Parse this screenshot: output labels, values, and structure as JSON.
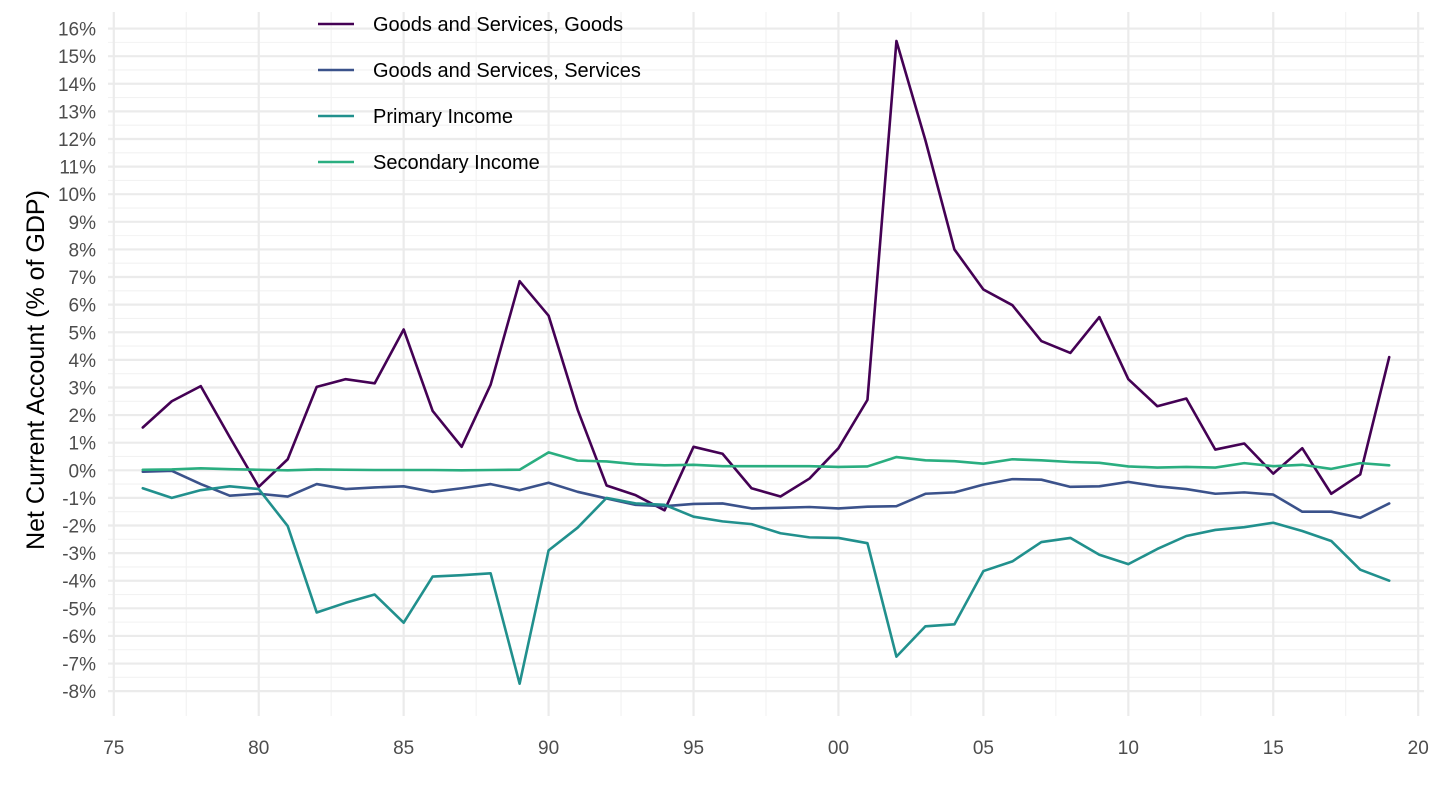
{
  "chart_data": {
    "type": "line",
    "title": "",
    "xlabel": "",
    "ylabel": "Net Current Account (% of GDP)",
    "xlim": [
      1974.8,
      2020.2
    ],
    "ylim": [
      -8.9,
      16.6
    ],
    "x_ticks": [
      1975,
      1980,
      1985,
      1990,
      1995,
      2000,
      2005,
      2010,
      2015,
      2020
    ],
    "x_tick_labels": [
      "75",
      "80",
      "85",
      "90",
      "95",
      "00",
      "05",
      "10",
      "15",
      "20"
    ],
    "y_ticks": [
      -8,
      -7,
      -6,
      -5,
      -4,
      -3,
      -2,
      -1,
      0,
      1,
      2,
      3,
      4,
      5,
      6,
      7,
      8,
      9,
      10,
      11,
      12,
      13,
      14,
      15,
      16
    ],
    "y_tick_labels": [
      "-8%",
      "-7%",
      "-6%",
      "-5%",
      "-4%",
      "-3%",
      "-2%",
      "-1%",
      "0%",
      "1%",
      "2%",
      "3%",
      "4%",
      "5%",
      "6%",
      "7%",
      "8%",
      "9%",
      "10%",
      "11%",
      "12%",
      "13%",
      "14%",
      "15%",
      "16%"
    ],
    "grid": true,
    "legend_position": "top-left",
    "x": [
      1976,
      1977,
      1978,
      1979,
      1980,
      1981,
      1982,
      1983,
      1984,
      1985,
      1986,
      1987,
      1988,
      1989,
      1990,
      1991,
      1992,
      1993,
      1994,
      1995,
      1996,
      1997,
      1998,
      1999,
      2000,
      2001,
      2002,
      2003,
      2004,
      2005,
      2006,
      2007,
      2008,
      2009,
      2010,
      2011,
      2012,
      2013,
      2014,
      2015,
      2016,
      2017,
      2018,
      2019
    ],
    "series": [
      {
        "name": "Goods and Services, Goods",
        "color": "#440154",
        "values": [
          1.55,
          2.5,
          3.05,
          1.2,
          -0.6,
          0.4,
          3.02,
          3.3,
          3.15,
          5.1,
          2.15,
          0.85,
          3.1,
          6.85,
          5.6,
          2.2,
          -0.55,
          -0.9,
          -1.45,
          0.85,
          0.6,
          -0.65,
          -0.95,
          -0.3,
          0.8,
          2.55,
          15.55,
          11.95,
          8.0,
          6.55,
          5.98,
          4.68,
          4.25,
          5.55,
          3.3,
          2.32,
          2.6,
          0.75,
          0.97,
          -0.12,
          0.8,
          -0.85,
          -0.15,
          4.1
        ]
      },
      {
        "name": "Goods and Services, Services",
        "color": "#3b528b",
        "values": [
          -0.05,
          -0.02,
          -0.5,
          -0.92,
          -0.85,
          -0.95,
          -0.5,
          -0.68,
          -0.62,
          -0.58,
          -0.78,
          -0.65,
          -0.5,
          -0.72,
          -0.45,
          -0.78,
          -1.02,
          -1.25,
          -1.3,
          -1.22,
          -1.2,
          -1.38,
          -1.36,
          -1.33,
          -1.38,
          -1.32,
          -1.3,
          -0.85,
          -0.8,
          -0.52,
          -0.32,
          -0.34,
          -0.6,
          -0.58,
          -0.42,
          -0.58,
          -0.68,
          -0.85,
          -0.8,
          -0.88,
          -1.5,
          -1.5,
          -1.72,
          -1.2
        ]
      },
      {
        "name": "Primary Income",
        "color": "#21908d",
        "values": [
          -0.65,
          -1.0,
          -0.72,
          -0.58,
          -0.68,
          -2.02,
          -5.15,
          -4.8,
          -4.5,
          -5.52,
          -3.85,
          -3.8,
          -3.73,
          -7.73,
          -2.9,
          -2.08,
          -1.0,
          -1.2,
          -1.25,
          -1.68,
          -1.85,
          -1.95,
          -2.28,
          -2.43,
          -2.45,
          -2.64,
          -6.75,
          -5.65,
          -5.58,
          -3.65,
          -3.3,
          -2.6,
          -2.45,
          -3.06,
          -3.4,
          -2.85,
          -2.38,
          -2.16,
          -2.06,
          -1.9,
          -2.2,
          -2.56,
          -3.6,
          -4.0
        ]
      },
      {
        "name": "Secondary Income",
        "color": "#2aae80",
        "values": [
          0.02,
          0.03,
          0.07,
          0.04,
          0.02,
          0.0,
          0.03,
          0.02,
          0.01,
          0.01,
          0.01,
          0.0,
          0.01,
          0.02,
          0.65,
          0.35,
          0.32,
          0.22,
          0.18,
          0.2,
          0.15,
          0.15,
          0.15,
          0.15,
          0.12,
          0.14,
          0.48,
          0.36,
          0.33,
          0.24,
          0.4,
          0.36,
          0.3,
          0.27,
          0.14,
          0.1,
          0.12,
          0.1,
          0.26,
          0.15,
          0.2,
          0.05,
          0.26,
          0.18
        ]
      }
    ]
  }
}
